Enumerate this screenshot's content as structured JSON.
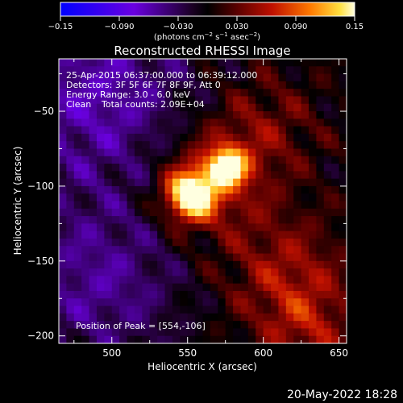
{
  "chart_data": {
    "type": "heatmap",
    "title": "Reconstructed RHESSI Image",
    "xlabel": "Heliocentric X (arcsec)",
    "ylabel": "Heliocentric Y (arcsec)",
    "xlim": [
      465,
      655
    ],
    "ylim": [
      -205,
      -15
    ],
    "x_ticks": [
      500,
      550,
      600,
      650
    ],
    "y_ticks": [
      -50,
      -100,
      -150,
      -200
    ],
    "x_tick_labels": [
      "500",
      "550",
      "600",
      "650"
    ],
    "y_tick_labels": [
      "−50",
      "−100",
      "−150",
      "−200"
    ],
    "colorbar": {
      "range": [
        -0.15,
        0.15
      ],
      "ticks": [
        -0.15,
        -0.09,
        -0.03,
        0.03,
        0.09,
        0.15
      ],
      "tick_labels": [
        "−0.15",
        "−0.090",
        "−0.030",
        "0.030",
        "0.090",
        "0.15"
      ],
      "units_label": "(photons cm",
      "units_exp1": "−2",
      "units_mid": " s",
      "units_exp2": "−1",
      "units_tail": " asec",
      "units_exp3": "−2",
      "units_close": ")"
    },
    "sources": [
      {
        "x": 552,
        "y": -106,
        "intensity": 0.15
      },
      {
        "x": 576,
        "y": -87,
        "intensity": 0.13
      }
    ],
    "peak": {
      "x": 554,
      "y": -106
    }
  },
  "annotations": {
    "time_range": "25-Apr-2015 06:37:00.000 to 06:39:12.000",
    "detectors": "Detectors: 3F 5F 6F 7F 8F 9F, Att 0",
    "energy_range": "Energy Range: 3.0 - 6.0 keV",
    "clean": "Clean",
    "total_counts": "Total counts: 2.09E+04",
    "peak_position": "Position of Peak = [554,-106]"
  },
  "footer": {
    "date": "20-May-2022 18:28"
  },
  "colors": {
    "background": "#000000",
    "text": "#ffffff"
  }
}
